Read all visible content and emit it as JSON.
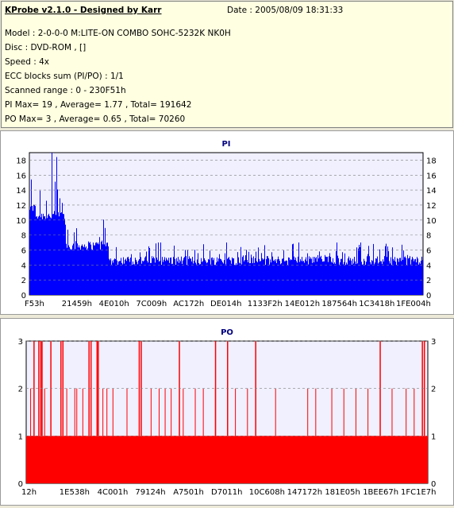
{
  "header": {
    "title": "KProbe v2.1.0 - Designed by Karr",
    "date": "Date : 2005/08/09 18:31:33",
    "lines": [
      "Model : 2-0-0-0 M:LITE-ON COMBO SOHC-5232K NK0H",
      "Disc : DVD-ROM ,  []",
      "Speed : 4x",
      "ECC blocks sum (PI/PO) : 1/1",
      "Scanned range : 0 - 230F51h",
      "PI Max= 19 , Average= 1.77 , Total= 191642",
      "PO Max= 3 , Average= 0.65 , Total= 70260"
    ]
  },
  "colors": {
    "pi": "#0000ff",
    "po": "#ff0000",
    "plot_bg": "#f0f0ff",
    "grid": "#7f7f7f"
  },
  "chart_data": [
    {
      "type": "bar",
      "title": "PI",
      "ylim": [
        0,
        19
      ],
      "yticks": [
        0,
        2,
        4,
        6,
        8,
        10,
        12,
        14,
        16,
        18
      ],
      "xtick_labels": [
        "F53h",
        "21459h",
        "4E010h",
        "7C009h",
        "AC172h",
        "DE014h",
        "1133F2h",
        "14E012h",
        "187564h",
        "1C3418h",
        "1FE004h"
      ],
      "grid": "dashed horizontal",
      "segments": [
        {
          "from": 0.0,
          "to": 0.015,
          "base": 11,
          "peak": 16
        },
        {
          "from": 0.015,
          "to": 0.09,
          "base": 10,
          "peak": 19
        },
        {
          "from": 0.09,
          "to": 0.2,
          "base": 6,
          "peak": 11
        },
        {
          "from": 0.2,
          "to": 1.0,
          "base": 4,
          "peak": 7
        }
      ]
    },
    {
      "type": "bar",
      "title": "PO",
      "ylim": [
        0,
        3
      ],
      "yticks": [
        0,
        1,
        2,
        3
      ],
      "xtick_labels": [
        "12h",
        "1E538h",
        "4C001h",
        "79124h",
        "A7501h",
        "D7011h",
        "10C608h",
        "147172h",
        "181E05h",
        "1BEE67h",
        "1FC1E7h"
      ],
      "grid": "dashed horizontal",
      "baseline": 1,
      "spikes_to_3": [
        0.018,
        0.03,
        0.035,
        0.038,
        0.06,
        0.085,
        0.09,
        0.155,
        0.16,
        0.175,
        0.178,
        0.28,
        0.285,
        0.38,
        0.47,
        0.5,
        0.57,
        0.88,
        0.985,
        0.99
      ],
      "spikes_to_2": [
        0.01,
        0.045,
        0.1,
        0.12,
        0.125,
        0.14,
        0.19,
        0.2,
        0.215,
        0.25,
        0.31,
        0.33,
        0.345,
        0.36,
        0.39,
        0.42,
        0.44,
        0.47,
        0.52,
        0.55,
        0.62,
        0.7,
        0.72,
        0.76,
        0.79,
        0.82,
        0.85,
        0.91,
        0.945,
        0.965
      ]
    }
  ]
}
